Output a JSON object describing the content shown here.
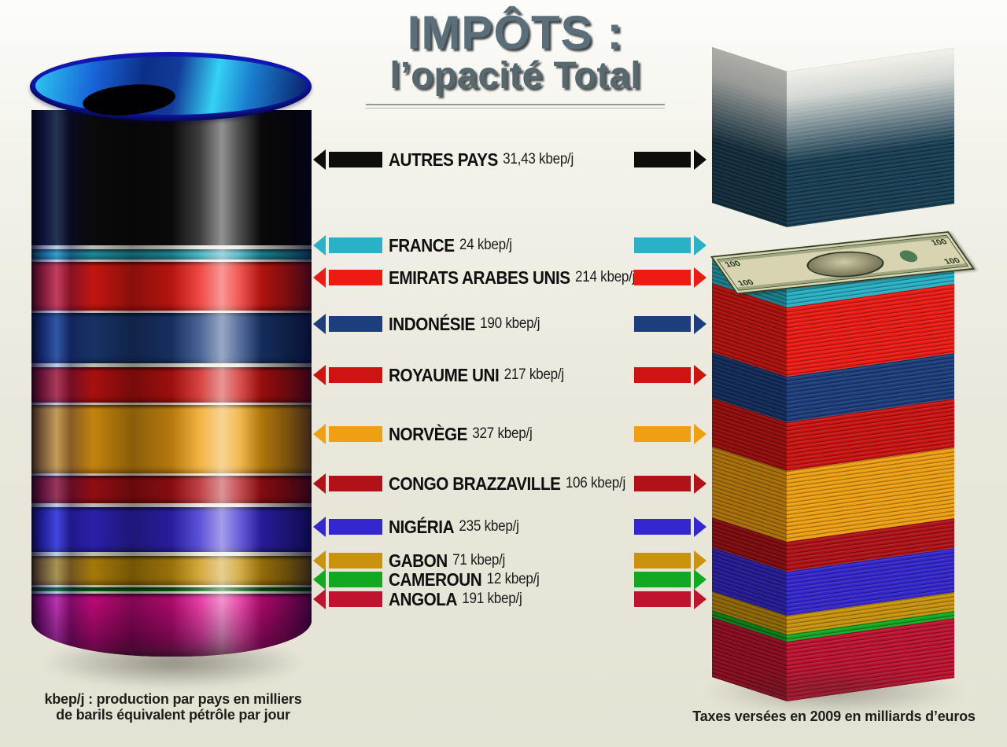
{
  "title": {
    "line1": "IMPÔTS :",
    "line2": "l’opacité Total"
  },
  "legend_rows": [
    {
      "label": "AUTRES PAYS",
      "value": "31,43 kbep/j",
      "color": "#0d0d0d",
      "stack_color": "#1a4156"
    },
    {
      "label": "FRANCE",
      "value": "24 kbep/j",
      "color": "#29b1c6"
    },
    {
      "label": "EMIRATS ARABES UNIS",
      "value": "214 kbep/j",
      "color": "#ee1b15"
    },
    {
      "label": "INDONÉSIE",
      "value": "190 kbep/j",
      "color": "#1d3e7d"
    },
    {
      "label": "ROYAUME UNI",
      "value": "217 kbep/j",
      "color": "#cd1412"
    },
    {
      "label": "NORVÈGE",
      "value": "327 kbep/j",
      "color": "#efa012"
    },
    {
      "label": "CONGO BRAZZAVILLE",
      "value": "106 kbep/j",
      "color": "#b11217"
    },
    {
      "label": "NIGÉRIA",
      "value": "235 kbep/j",
      "color": "#3527cf"
    },
    {
      "label": "GABON",
      "value": "71 kbep/j",
      "color": "#c9940c"
    },
    {
      "label": "CAMEROUN",
      "value": "12 kbep/j",
      "color": "#13a821"
    },
    {
      "label": "ANGOLA",
      "value": "191 kbep/j",
      "color": "#bf1330",
      "barrel_color": "#e00d8d"
    }
  ],
  "bill": {
    "denomination": "100"
  },
  "footnotes": {
    "left_line1": "kbep/j : production par pays en milliers",
    "left_line2": "de barils équivalent pétrôle par jour",
    "right": "Taxes versées en 2009 en milliards d’euros"
  },
  "chart_data": {
    "type": "bar",
    "title": "IMPÔTS : l’opacité Total",
    "categories": [
      "AUTRES PAYS",
      "FRANCE",
      "EMIRATS ARABES UNIS",
      "INDONÉSIE",
      "ROYAUME UNI",
      "NORVÈGE",
      "CONGO BRAZZAVILLE",
      "NIGÉRIA",
      "GABON",
      "CAMEROUN",
      "ANGOLA"
    ],
    "series": [
      {
        "name": "Production pétrolière (kbep/j)",
        "values": [
          31.43,
          24,
          214,
          190,
          217,
          327,
          106,
          235,
          71,
          12,
          191
        ]
      }
    ],
    "colors": [
      "#0d0d0d",
      "#29b1c6",
      "#ee1b15",
      "#1d3e7d",
      "#cd1412",
      "#efa012",
      "#b11217",
      "#3527cf",
      "#c9940c",
      "#13a821",
      "#bf1330"
    ],
    "xlabel": "",
    "ylabel": "kbep/j",
    "legend_position": "none",
    "grid": false,
    "annotations": [
      "kbep/j : production par pays en milliers de barils équivalent pétrôle par jour",
      "Taxes versées en 2009 en milliards d’euros"
    ]
  }
}
